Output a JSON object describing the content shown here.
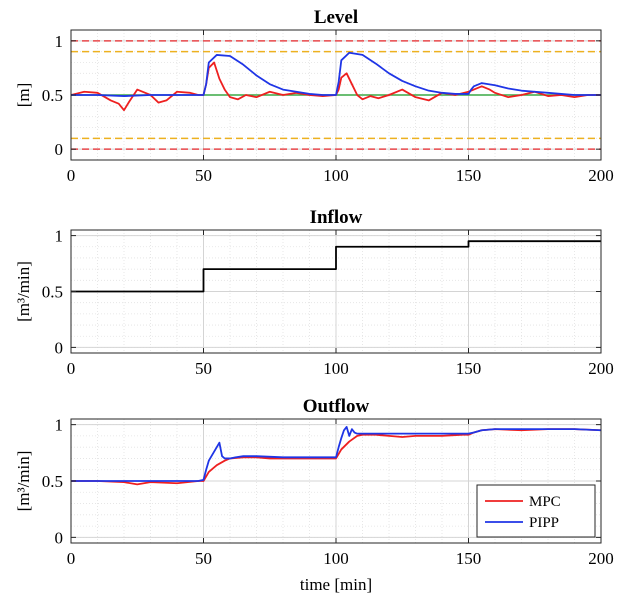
{
  "chart_data": [
    {
      "type": "line",
      "title": "Level",
      "xlabel": "",
      "ylabel": "[m]",
      "xlim": [
        0,
        200
      ],
      "ylim": [
        -0.1,
        1.1
      ],
      "xticks": [
        "0",
        "50",
        "100",
        "150",
        "200"
      ],
      "yticks": [
        "0",
        "0.5",
        "1"
      ],
      "grid": true,
      "reference_lines": [
        {
          "y": 1.0,
          "color": "#e8474a",
          "style": "dashed"
        },
        {
          "y": 0.9,
          "color": "#edb120",
          "style": "dashed"
        },
        {
          "y": 0.5,
          "color": "#3aa845",
          "style": "solid"
        },
        {
          "y": 0.1,
          "color": "#edb120",
          "style": "dashed"
        },
        {
          "y": 0.0,
          "color": "#e8474a",
          "style": "dashed"
        }
      ],
      "series": [
        {
          "color": "#ee2020",
          "x": [
            0,
            5,
            10,
            15,
            18,
            20,
            22,
            25,
            28,
            30,
            33,
            36,
            40,
            45,
            48,
            50,
            51,
            52,
            54,
            56,
            58,
            60,
            63,
            66,
            70,
            75,
            80,
            85,
            90,
            95,
            100,
            101,
            102,
            104,
            106,
            108,
            110,
            113,
            116,
            120,
            125,
            130,
            135,
            140,
            145,
            150,
            152,
            155,
            158,
            160,
            165,
            170,
            175,
            180,
            185,
            190,
            195,
            200
          ],
          "y": [
            0.5,
            0.53,
            0.52,
            0.45,
            0.42,
            0.36,
            0.44,
            0.55,
            0.52,
            0.5,
            0.43,
            0.45,
            0.53,
            0.52,
            0.5,
            0.5,
            0.6,
            0.75,
            0.8,
            0.65,
            0.55,
            0.48,
            0.46,
            0.5,
            0.48,
            0.53,
            0.5,
            0.52,
            0.5,
            0.49,
            0.5,
            0.55,
            0.66,
            0.7,
            0.6,
            0.5,
            0.46,
            0.49,
            0.47,
            0.5,
            0.55,
            0.48,
            0.45,
            0.52,
            0.5,
            0.53,
            0.55,
            0.58,
            0.55,
            0.52,
            0.48,
            0.5,
            0.53,
            0.49,
            0.5,
            0.48,
            0.5,
            0.5
          ]
        },
        {
          "color": "#1f35e6",
          "x": [
            0,
            10,
            20,
            30,
            40,
            50,
            51,
            52,
            55,
            60,
            65,
            70,
            75,
            80,
            85,
            90,
            95,
            100,
            101,
            102,
            105,
            110,
            115,
            120,
            125,
            130,
            135,
            140,
            145,
            150,
            151,
            152,
            155,
            160,
            165,
            170,
            175,
            180,
            185,
            190,
            195,
            200
          ],
          "y": [
            0.5,
            0.5,
            0.49,
            0.5,
            0.5,
            0.5,
            0.6,
            0.8,
            0.87,
            0.86,
            0.78,
            0.68,
            0.6,
            0.55,
            0.53,
            0.51,
            0.5,
            0.5,
            0.62,
            0.82,
            0.89,
            0.87,
            0.79,
            0.7,
            0.63,
            0.58,
            0.54,
            0.52,
            0.51,
            0.51,
            0.55,
            0.58,
            0.61,
            0.59,
            0.56,
            0.54,
            0.53,
            0.52,
            0.51,
            0.5,
            0.5,
            0.5
          ]
        }
      ]
    },
    {
      "type": "line",
      "title": "Inflow",
      "xlabel": "",
      "ylabel": "[m³/min]",
      "xlim": [
        0,
        200
      ],
      "ylim": [
        -0.05,
        1.05
      ],
      "xticks": [
        "0",
        "50",
        "100",
        "150",
        "200"
      ],
      "yticks": [
        "0",
        "0.5",
        "1"
      ],
      "grid": true,
      "series": [
        {
          "color": "#000000",
          "x": [
            0,
            50,
            50,
            100,
            100,
            150,
            150,
            200
          ],
          "y": [
            0.5,
            0.5,
            0.7,
            0.7,
            0.9,
            0.9,
            0.95,
            0.95
          ]
        }
      ]
    },
    {
      "type": "line",
      "title": "Outflow",
      "xlabel": "time [min]",
      "ylabel": "[m³/min]",
      "xlim": [
        0,
        200
      ],
      "ylim": [
        -0.05,
        1.05
      ],
      "xticks": [
        "0",
        "50",
        "100",
        "150",
        "200"
      ],
      "yticks": [
        "0",
        "0.5",
        "1"
      ],
      "grid": true,
      "legend_position": "bottom-right",
      "series": [
        {
          "name": "MPC",
          "color": "#ee2020",
          "x": [
            0,
            10,
            20,
            25,
            30,
            40,
            48,
            50,
            52,
            55,
            58,
            60,
            65,
            70,
            75,
            80,
            90,
            95,
            100,
            102,
            105,
            108,
            110,
            115,
            120,
            125,
            130,
            140,
            148,
            150,
            152,
            155,
            160,
            170,
            180,
            190,
            200
          ],
          "y": [
            0.5,
            0.5,
            0.49,
            0.47,
            0.49,
            0.48,
            0.5,
            0.5,
            0.58,
            0.64,
            0.68,
            0.7,
            0.71,
            0.71,
            0.7,
            0.7,
            0.7,
            0.7,
            0.7,
            0.78,
            0.85,
            0.9,
            0.91,
            0.91,
            0.9,
            0.89,
            0.9,
            0.9,
            0.91,
            0.91,
            0.93,
            0.95,
            0.96,
            0.95,
            0.96,
            0.96,
            0.95
          ]
        },
        {
          "name": "PIPP",
          "color": "#1f35e6",
          "x": [
            0,
            10,
            20,
            30,
            40,
            48,
            50,
            51,
            52,
            53,
            54,
            55,
            56,
            57,
            58,
            60,
            62,
            65,
            70,
            80,
            90,
            100,
            101,
            102,
            103,
            104,
            105,
            106,
            107,
            108,
            110,
            115,
            120,
            130,
            140,
            150,
            152,
            155,
            160,
            170,
            180,
            190,
            200
          ],
          "y": [
            0.5,
            0.5,
            0.5,
            0.5,
            0.5,
            0.5,
            0.51,
            0.6,
            0.68,
            0.72,
            0.76,
            0.8,
            0.84,
            0.72,
            0.7,
            0.7,
            0.71,
            0.72,
            0.72,
            0.71,
            0.71,
            0.71,
            0.8,
            0.88,
            0.95,
            0.98,
            0.9,
            0.96,
            0.93,
            0.92,
            0.92,
            0.92,
            0.92,
            0.92,
            0.92,
            0.92,
            0.93,
            0.95,
            0.96,
            0.96,
            0.96,
            0.96,
            0.95
          ]
        }
      ]
    }
  ]
}
